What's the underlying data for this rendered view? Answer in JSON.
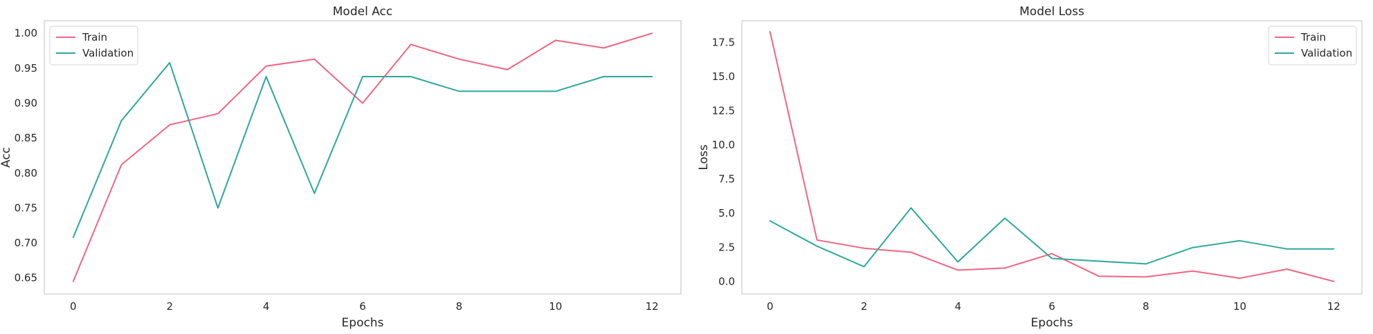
{
  "chart_data": [
    {
      "type": "line",
      "title": "Model Acc",
      "xlabel": "Epochs",
      "ylabel": "Acc",
      "xlim": [
        -0.6,
        12.6
      ],
      "ylim": [
        0.627,
        1.018
      ],
      "xticks": [
        0,
        2,
        4,
        6,
        8,
        10,
        12
      ],
      "xtick_labels": [
        "0",
        "2",
        "4",
        "6",
        "8",
        "10",
        "12"
      ],
      "yticks": [
        0.65,
        0.7,
        0.75,
        0.8,
        0.85,
        0.9,
        0.95,
        1.0
      ],
      "ytick_labels": [
        "0.65",
        "0.70",
        "0.75",
        "0.80",
        "0.85",
        "0.90",
        "0.95",
        "1.00"
      ],
      "grid": false,
      "legend_position": "top-left",
      "x": [
        0,
        1,
        2,
        3,
        4,
        5,
        6,
        7,
        8,
        9,
        10,
        11,
        12
      ],
      "series": [
        {
          "name": "Train",
          "color": "#f2637f",
          "values": [
            0.645,
            0.812,
            0.869,
            0.885,
            0.953,
            0.963,
            0.9,
            0.984,
            0.963,
            0.948,
            0.99,
            0.979,
            1.0
          ]
        },
        {
          "name": "Validation",
          "color": "#2ba89c",
          "values": [
            0.708,
            0.875,
            0.958,
            0.75,
            0.938,
            0.771,
            0.938,
            0.938,
            0.917,
            0.917,
            0.917,
            0.938,
            0.938
          ]
        }
      ]
    },
    {
      "type": "line",
      "title": "Model Loss",
      "xlabel": "Epochs",
      "ylabel": "Loss",
      "xlim": [
        -0.6,
        12.6
      ],
      "ylim": [
        -0.9,
        19.1
      ],
      "xticks": [
        0,
        2,
        4,
        6,
        8,
        10,
        12
      ],
      "xtick_labels": [
        "0",
        "2",
        "4",
        "6",
        "8",
        "10",
        "12"
      ],
      "yticks": [
        0.0,
        2.5,
        5.0,
        7.5,
        10.0,
        12.5,
        15.0,
        17.5
      ],
      "ytick_labels": [
        "0.0",
        "2.5",
        "5.0",
        "7.5",
        "10.0",
        "12.5",
        "15.0",
        "17.5"
      ],
      "grid": false,
      "legend_position": "top-right",
      "x": [
        0,
        1,
        2,
        3,
        4,
        5,
        6,
        7,
        8,
        9,
        10,
        11,
        12
      ],
      "series": [
        {
          "name": "Train",
          "color": "#f2637f",
          "values": [
            18.3,
            3.05,
            2.45,
            2.15,
            0.85,
            1.0,
            2.05,
            0.4,
            0.35,
            0.78,
            0.25,
            0.92,
            0.02
          ]
        },
        {
          "name": "Validation",
          "color": "#2ba89c",
          "values": [
            4.45,
            2.6,
            1.1,
            5.4,
            1.45,
            4.65,
            1.7,
            1.5,
            1.3,
            2.5,
            3.0,
            2.4,
            2.4
          ]
        }
      ]
    }
  ]
}
